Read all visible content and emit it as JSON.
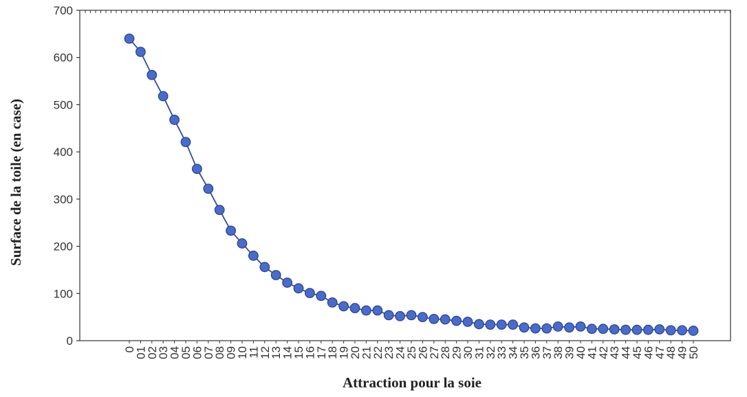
{
  "chart_data": {
    "type": "line",
    "title": "",
    "xlabel": "Attraction pour la soie",
    "ylabel": "Surface de la toile (en case)",
    "ylim": [
      0,
      700
    ],
    "yticks": [
      "0",
      "100",
      "200",
      "300",
      "400",
      "500",
      "600",
      "700"
    ],
    "grid": false,
    "legend": "none",
    "colors": {
      "line": "#2f4a9a",
      "marker": "#4a6cc8",
      "marker_edge": "#2a3f8f",
      "axis": "#333333"
    },
    "categories": [
      "0",
      "01",
      "02",
      "03",
      "04",
      "05",
      "06",
      "07",
      "08",
      "09",
      "10",
      "11",
      "12",
      "13",
      "14",
      "15",
      "16",
      "17",
      "18",
      "19",
      "20",
      "21",
      "22",
      "23",
      "24",
      "25",
      "26",
      "27",
      "28",
      "29",
      "30",
      "31",
      "32",
      "33",
      "34",
      "35",
      "36",
      "37",
      "38",
      "39",
      "40",
      "41",
      "42",
      "43",
      "44",
      "45",
      "46",
      "47",
      "48",
      "49",
      "50"
    ],
    "series": [
      {
        "values": [
          640,
          612,
          563,
          518,
          468,
          421,
          364,
          322,
          277,
          233,
          206,
          180,
          156,
          139,
          123,
          111,
          101,
          95,
          81,
          73,
          69,
          64,
          64,
          54,
          52,
          54,
          50,
          46,
          45,
          42,
          40,
          35,
          34,
          34,
          34,
          28,
          26,
          26,
          30,
          28,
          30,
          25,
          25,
          24,
          23,
          23,
          23,
          24,
          22,
          22,
          21
        ]
      }
    ]
  }
}
